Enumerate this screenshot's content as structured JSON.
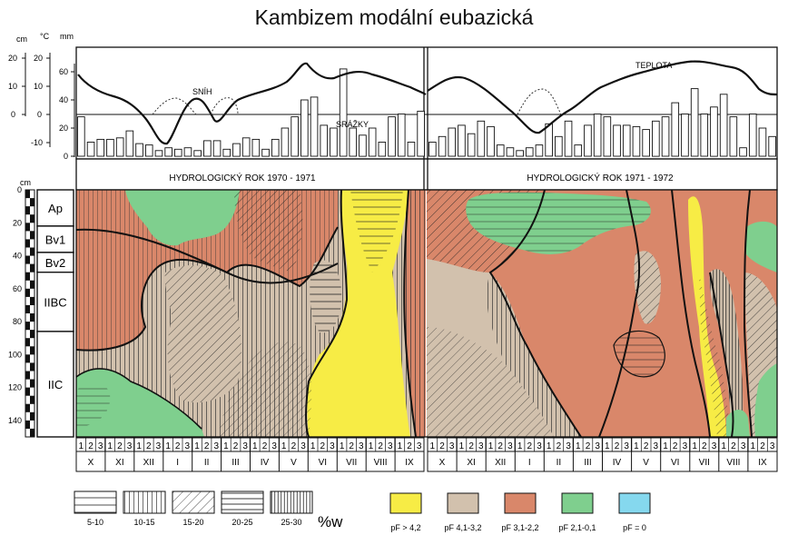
{
  "title": "Kambizem modální eubazická",
  "units": {
    "snow": "cm",
    "temp": "°C",
    "precip": "mm"
  },
  "axes": {
    "snow_ticks": [
      "20",
      "10",
      "0"
    ],
    "temp_ticks": [
      "20",
      "10",
      "0",
      "-10"
    ],
    "precip_ticks": [
      "60",
      "40",
      "20",
      "0"
    ],
    "depth_unit": "cm",
    "depth_ticks": [
      "0",
      "20",
      "40",
      "60",
      "80",
      "100",
      "120",
      "140"
    ]
  },
  "curve_labels": {
    "snow": "SNÍH",
    "precip": "SRÁŽKY",
    "temp": "TEPLOTA"
  },
  "years": [
    {
      "label": "HYDROLOGICKÝ ROK 1970 - 1971"
    },
    {
      "label": "HYDROLOGICKÝ ROK 1971 - 1972"
    }
  ],
  "horizons": [
    "Ap",
    "Bv1",
    "Bv2",
    "IIBC",
    "IIC"
  ],
  "horizon_bounds": [
    0,
    22,
    38,
    50,
    86,
    150
  ],
  "months": [
    "X",
    "XI",
    "XII",
    "I",
    "II",
    "III",
    "IV",
    "V",
    "VI",
    "VII",
    "VIII",
    "IX"
  ],
  "decades": [
    "1",
    "2",
    "3"
  ],
  "precip_1970": [
    28,
    10,
    12,
    12,
    13,
    18,
    9,
    8,
    4,
    6,
    5,
    6,
    4,
    11,
    11,
    5,
    9,
    13,
    12,
    5,
    12,
    20,
    28,
    40,
    42,
    22,
    20,
    62,
    20,
    15,
    20,
    10,
    28,
    30,
    10,
    32
  ],
  "precip_1971": [
    10,
    14,
    20,
    22,
    16,
    25,
    21,
    8,
    6,
    4,
    6,
    8,
    23,
    14,
    25,
    8,
    22,
    30,
    28,
    22,
    22,
    21,
    19,
    25,
    28,
    38,
    30,
    48,
    30,
    35,
    44,
    28,
    6,
    30,
    20,
    14
  ],
  "moisture_legend": {
    "title": "%w",
    "items": [
      "5-10",
      "10-15",
      "15-20",
      "20-25",
      "25-30"
    ]
  },
  "pf_legend": {
    "items": [
      {
        "label": "pF > 4,2",
        "color": "#f7ec45"
      },
      {
        "label": "pF 4,1-3,2",
        "color": "#d2c1ad"
      },
      {
        "label": "pF 3,1-2,2",
        "color": "#d9876a"
      },
      {
        "label": "pF 2,1-0,1",
        "color": "#7fcf8e"
      },
      {
        "label": "pF = 0",
        "color": "#85d8ee"
      }
    ]
  }
}
